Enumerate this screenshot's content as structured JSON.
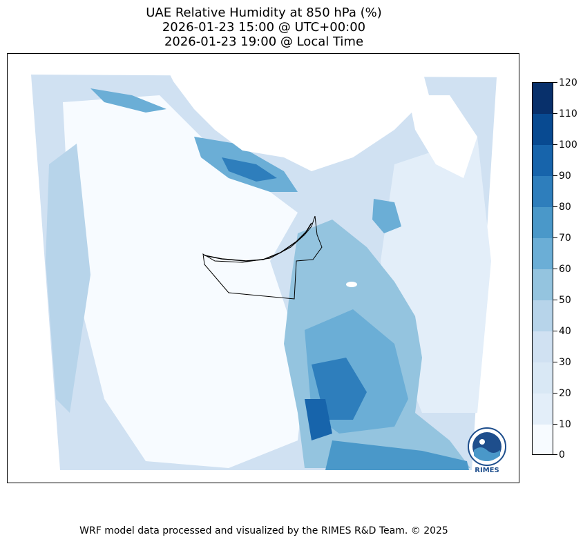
{
  "title": {
    "line1": "UAE Relative Humidity at 850 hPa (%)",
    "line2": "2026-01-23 15:00 @ UTC+00:00",
    "line3": "2026-01-23 19:00 @ Local Time"
  },
  "colorbar": {
    "ticks": [
      "120",
      "110",
      "100",
      "90",
      "80",
      "70",
      "60",
      "50",
      "40",
      "30",
      "20",
      "10",
      "0"
    ],
    "levels": [
      0,
      10,
      20,
      30,
      40,
      50,
      60,
      70,
      80,
      90,
      100,
      110,
      120
    ],
    "colors": [
      "#f7fbff",
      "#e3eef9",
      "#d0e1f2",
      "#b7d4ea",
      "#94c4df",
      "#6baed6",
      "#4a98c9",
      "#2e7ebc",
      "#1764ab",
      "#084a91",
      "#08306b",
      "#08306b"
    ]
  },
  "footer": "WRF model data processed and visualized by the RIMES R&D Team. © 2025",
  "logo": {
    "text": "RIMES"
  }
}
